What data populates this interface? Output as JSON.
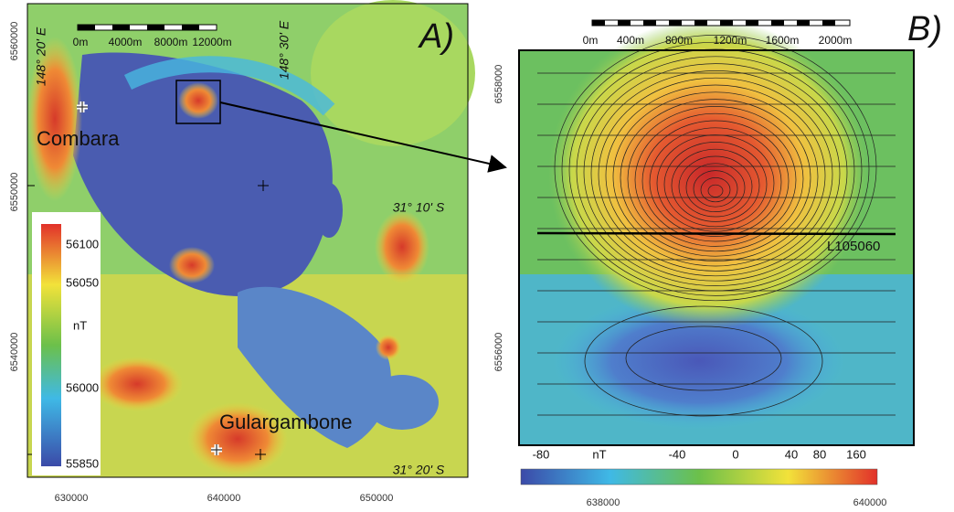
{
  "panel_a": {
    "label": "A)",
    "scale_labels": [
      "0m",
      "4000m",
      "8000m",
      "12000m"
    ],
    "longitudes": [
      "148° 20' E",
      "148° 30' E"
    ],
    "latitudes": [
      "31° 10' S",
      "31° 20' S"
    ],
    "places": [
      "Combara",
      "Gulargambone"
    ],
    "northings": [
      "6560000",
      "6550000",
      "6540000"
    ],
    "eastings": [
      "630000",
      "640000",
      "650000"
    ],
    "colorbar": {
      "unit": "nT",
      "labels": [
        "56100",
        "56050",
        "56000",
        "55850"
      ]
    }
  },
  "panel_b": {
    "label": "B)",
    "scale_labels": [
      "0m",
      "400m",
      "800m",
      "1200m",
      "1600m",
      "2000m"
    ],
    "line_label": "L105060",
    "northings": [
      "6558000",
      "6556000"
    ],
    "eastings": [
      "638000",
      "640000"
    ],
    "colorbar": {
      "unit": "nT",
      "labels": [
        "-80",
        "-40",
        "0",
        "40",
        "80",
        "160"
      ]
    }
  }
}
